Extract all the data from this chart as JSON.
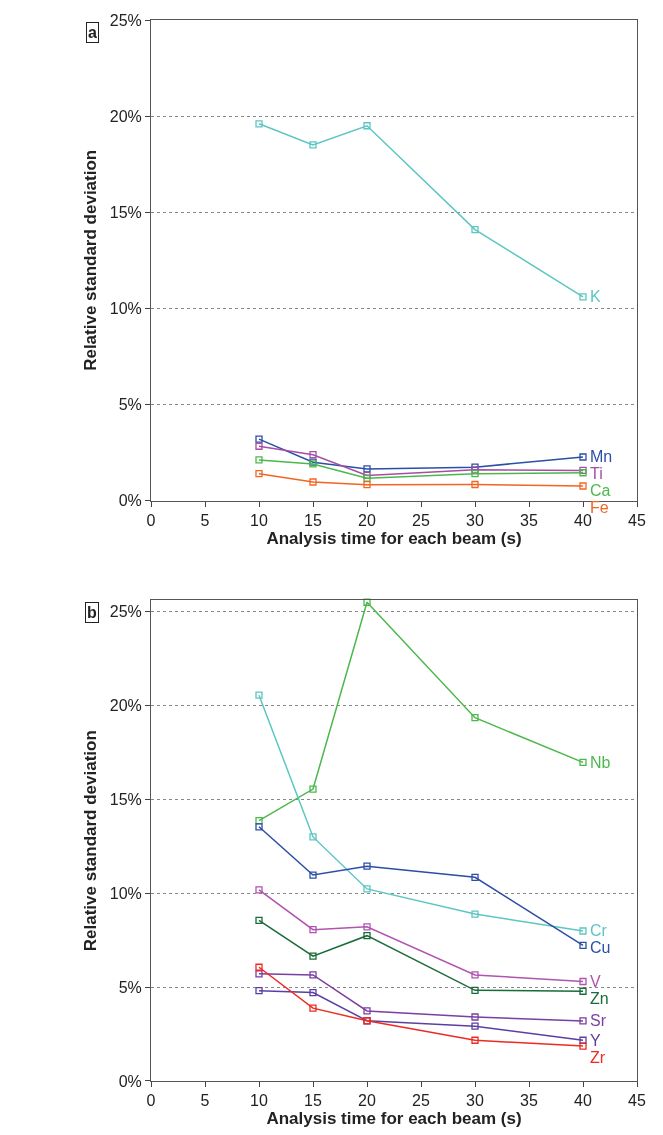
{
  "chart_data": [
    {
      "type": "line",
      "title": "a",
      "xlabel": "Analysis time for each beam (s)",
      "ylabel": "Relative standard deviation",
      "xlim": [
        0,
        45
      ],
      "xticks": [
        0,
        5,
        10,
        15,
        20,
        25,
        30,
        35,
        40,
        45
      ],
      "ylim": [
        0,
        25
      ],
      "yticks": [
        {
          "value": 0,
          "label": "0%"
        },
        {
          "value": 5,
          "label": "5%"
        },
        {
          "value": 10,
          "label": "10%"
        },
        {
          "value": 15,
          "label": "15%"
        },
        {
          "value": 20,
          "label": "20%"
        },
        {
          "value": 25,
          "label": "25%"
        }
      ],
      "grid": "y",
      "marker": "square",
      "line_style": "solid",
      "x": [
        10,
        15,
        20,
        30,
        40
      ],
      "series": [
        {
          "name": "K",
          "color": "#5cc6c2",
          "values": [
            19.6,
            18.5,
            19.5,
            14.1,
            10.6
          ]
        },
        {
          "name": "Mn",
          "color": "#2b4ea6",
          "values": [
            3.2,
            2.0,
            1.65,
            1.74,
            2.27
          ]
        },
        {
          "name": "Ti",
          "color": "#a64ea6",
          "values": [
            2.83,
            2.39,
            1.31,
            1.6,
            1.57
          ]
        },
        {
          "name": "Ca",
          "color": "#4cb84c",
          "values": [
            2.12,
            1.91,
            1.17,
            1.4,
            1.45
          ]
        },
        {
          "name": "Fe",
          "color": "#f26522",
          "values": [
            1.4,
            0.97,
            0.83,
            0.84,
            0.76
          ]
        }
      ]
    },
    {
      "type": "line",
      "title": "b",
      "xlabel": "Analysis time for each beam (s)",
      "ylabel": "Relative standard deviation",
      "xlim": [
        0,
        45
      ],
      "xticks": [
        0,
        5,
        10,
        15,
        20,
        25,
        30,
        35,
        40,
        45
      ],
      "ylim": [
        0,
        25.6
      ],
      "yticks": [
        {
          "value": 0,
          "label": "0%"
        },
        {
          "value": 5,
          "label": "5%"
        },
        {
          "value": 10,
          "label": "10%"
        },
        {
          "value": 15,
          "label": "15%"
        },
        {
          "value": 20,
          "label": "20%"
        },
        {
          "value": 25,
          "label": "25%"
        }
      ],
      "grid": "y",
      "marker": "square",
      "line_style": "solid",
      "x": [
        10,
        15,
        20,
        30,
        40
      ],
      "series": [
        {
          "name": "Nb",
          "color": "#4cb84c",
          "values": [
            13.87,
            15.55,
            25.5,
            19.35,
            16.97
          ]
        },
        {
          "name": "Cr",
          "color": "#5cc6c2",
          "values": [
            20.55,
            13.0,
            10.23,
            8.89,
            7.99
          ]
        },
        {
          "name": "Cu",
          "color": "#2b4ea6",
          "values": [
            13.54,
            10.97,
            11.44,
            10.85,
            7.22
          ]
        },
        {
          "name": "V",
          "color": "#b054b0",
          "values": [
            10.18,
            8.06,
            8.21,
            5.65,
            5.3
          ]
        },
        {
          "name": "Zn",
          "color": "#1a6b3a",
          "values": [
            8.56,
            6.65,
            7.74,
            4.83,
            4.78
          ]
        },
        {
          "name": "Sr",
          "color": "#7a3fa0",
          "values": [
            5.71,
            5.65,
            3.73,
            3.41,
            3.2
          ]
        },
        {
          "name": "Y",
          "color": "#5a3fa0",
          "values": [
            4.81,
            4.71,
            3.21,
            2.92,
            2.17
          ]
        },
        {
          "name": "Zr",
          "color": "#ee2a24",
          "values": [
            6.06,
            3.88,
            3.21,
            2.17,
            1.86
          ]
        }
      ]
    }
  ]
}
